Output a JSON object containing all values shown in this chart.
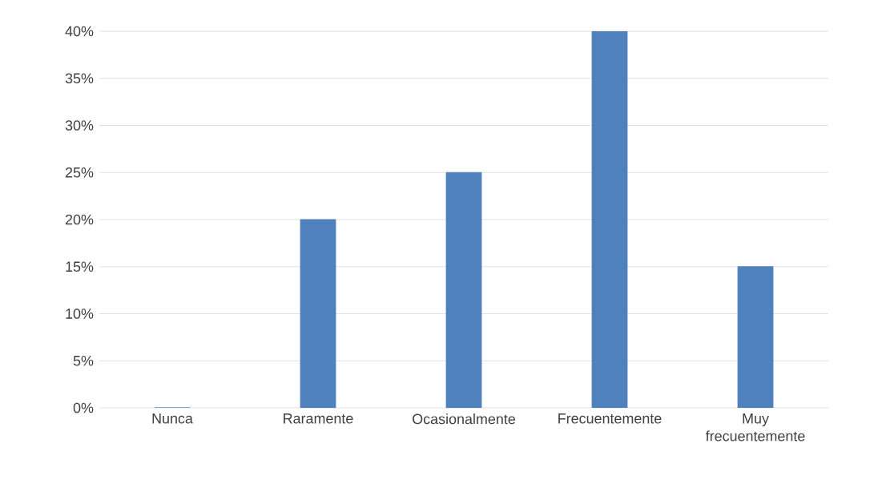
{
  "chart_data": {
    "type": "bar",
    "categories": [
      "Nunca",
      "Raramente",
      "Ocasionalmente",
      "Frecuentemente",
      "Muy frecuentemente"
    ],
    "values": [
      0,
      20,
      25,
      40,
      15
    ],
    "color": "#4f81bd",
    "ylim": [
      0,
      40
    ],
    "yticks": [
      {
        "value": 0,
        "label": "0%"
      },
      {
        "value": 5,
        "label": "5%"
      },
      {
        "value": 10,
        "label": "10%"
      },
      {
        "value": 15,
        "label": "15%"
      },
      {
        "value": 20,
        "label": "20%"
      },
      {
        "value": 25,
        "label": "25%"
      },
      {
        "value": 30,
        "label": "30%"
      },
      {
        "value": 35,
        "label": "35%"
      },
      {
        "value": 40,
        "label": "40%"
      }
    ],
    "grid": "y"
  }
}
